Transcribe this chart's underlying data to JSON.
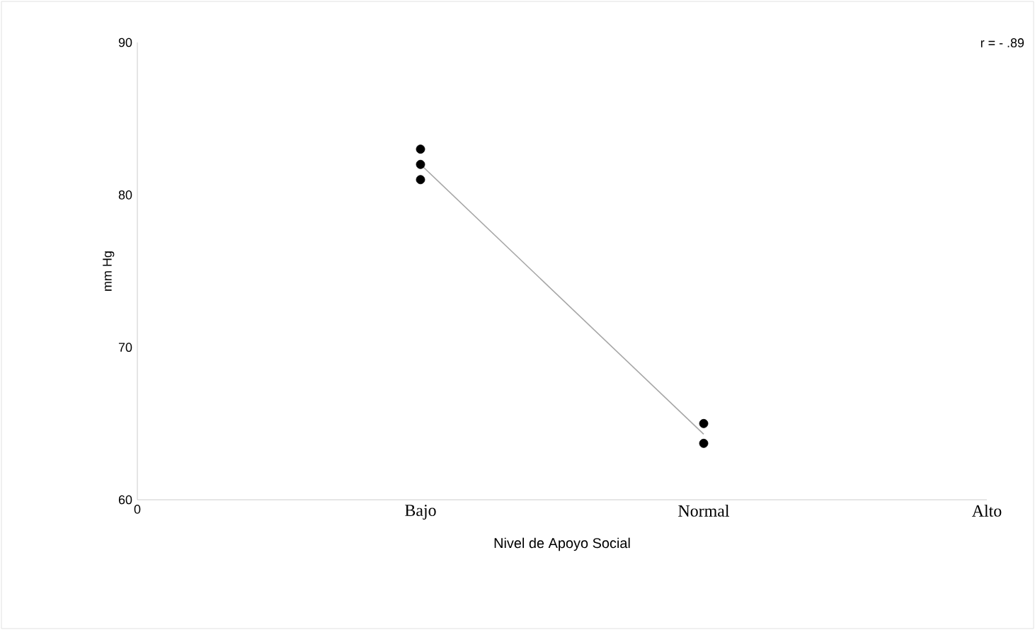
{
  "chart_data": {
    "type": "scatter",
    "xlabel": "Nivel de Apoyo Social",
    "ylabel": "mm Hg",
    "annotations": [
      "r = - .89"
    ],
    "categories": [
      "0",
      "Bajo",
      "Normal",
      "Alto"
    ],
    "ylim": [
      60,
      90
    ],
    "yticks": [
      60,
      70,
      80,
      90
    ],
    "marker": "circle",
    "series": [
      {
        "color": "#000000",
        "x": [
          "Bajo",
          "Bajo",
          "Bajo",
          "Normal",
          "Normal"
        ],
        "values": [
          83,
          82,
          81,
          65,
          63.7
        ]
      },
      {
        "type": "line",
        "color": "#a6a6a6",
        "marker": "none",
        "x": [
          "Bajo",
          "Normal"
        ],
        "values": [
          82,
          64.3
        ]
      }
    ]
  }
}
